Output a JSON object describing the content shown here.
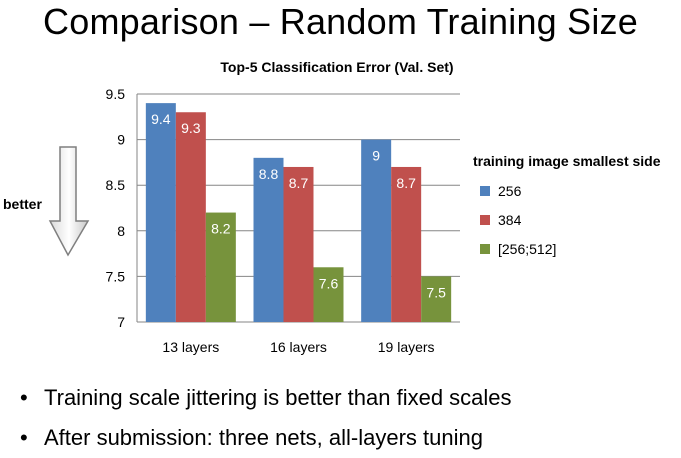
{
  "slide": {
    "title": "Comparison – Random Training Size",
    "better_label": "better",
    "bullets": [
      "Training scale jittering is better than fixed scales",
      "After submission: three nets, all-layers tuning"
    ]
  },
  "chart_data": {
    "type": "bar",
    "title": "Top-5 Classification Error (Val. Set)",
    "xlabel": "",
    "ylabel": "",
    "categories": [
      "13 layers",
      "16 layers",
      "19 layers"
    ],
    "ylim": [
      7,
      9.5
    ],
    "yticks": [
      "9.5",
      "9",
      "8.5",
      "8",
      "7.5",
      "7"
    ],
    "ytick_values": [
      9.5,
      9,
      8.5,
      8,
      7.5,
      7
    ],
    "grid": true,
    "legend_title": "training image smallest side",
    "legend_position": "right",
    "series": [
      {
        "name": "256",
        "color": "#4f81bd",
        "values": [
          9.4,
          8.8,
          9.0
        ],
        "labels": [
          "9.4",
          "8.8",
          "9"
        ]
      },
      {
        "name": "384",
        "color": "#c0504d",
        "values": [
          9.3,
          8.7,
          8.7
        ],
        "labels": [
          "9.3",
          "8.7",
          "8.7"
        ]
      },
      {
        "name": "[256;512]",
        "color": "#77933c",
        "values": [
          8.2,
          7.6,
          7.5
        ],
        "labels": [
          "8.2",
          "7.6",
          "7.5"
        ]
      }
    ]
  }
}
